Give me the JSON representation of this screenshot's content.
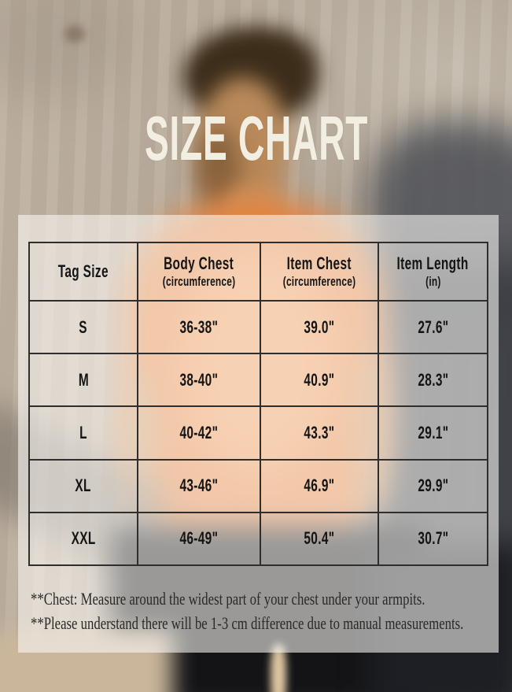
{
  "title": "SIZE CHART",
  "chart_data": {
    "type": "table",
    "title": "SIZE CHART",
    "columns": [
      {
        "label": "Tag Size",
        "sub": ""
      },
      {
        "label": "Body Chest",
        "sub": "(circumference)"
      },
      {
        "label": "Item Chest",
        "sub": "(circumference)"
      },
      {
        "label": "Item Length",
        "sub": "(in)"
      }
    ],
    "rows": [
      [
        "S",
        "36-38\"",
        "39.0\"",
        "27.6\""
      ],
      [
        "M",
        "38-40\"",
        "40.9\"",
        "28.3\""
      ],
      [
        "L",
        "40-42\"",
        "43.3\"",
        "29.1\""
      ],
      [
        "XL",
        "43-46\"",
        "46.9\"",
        "29.9\""
      ],
      [
        "XXL",
        "46-49\"",
        "50.4\"",
        "30.7\""
      ]
    ],
    "footnotes": [
      "**Chest: Measure around the widest part of your chest under your armpits.",
      "**Please understand there will be 1-3 cm difference due to manual measurements."
    ]
  },
  "colors": {
    "accent": "#e5833f",
    "panel": "rgba(252,250,246,0.58)",
    "border": "#2f2e2c",
    "titlecolor": "#f2eee1",
    "tabletext": "#141414",
    "note": "#2b2926"
  }
}
